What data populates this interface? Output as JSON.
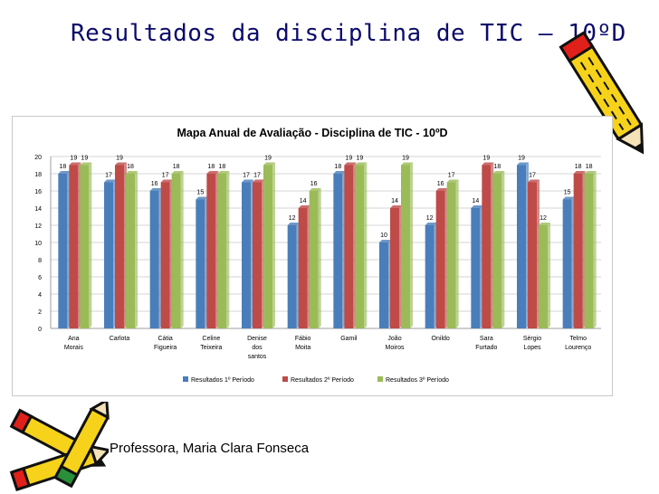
{
  "slide": {
    "title": "Resultados da disciplina de TIC – 10ºD",
    "footer": "Professora, Maria Clara Fonseca"
  },
  "colors": {
    "series": [
      "#4a7ebb",
      "#be4b48",
      "#9bbb59"
    ],
    "title_text": "#0b0b6b",
    "pencil_yellow": "#f6d21a",
    "pencil_red": "#e0201b"
  },
  "icons": [
    "pencil-icon",
    "pencil-icon",
    "pencil-icon"
  ],
  "chart_data": {
    "type": "bar",
    "title": "Mapa Anual de Avaliação - Disciplina de TIC - 10ºD",
    "xlabel": "",
    "ylabel": "",
    "ylim": [
      0,
      20
    ],
    "yticks": [
      0,
      2,
      4,
      6,
      8,
      10,
      12,
      14,
      16,
      18,
      20
    ],
    "grid": true,
    "legend_position": "bottom",
    "categories": [
      [
        "Ana",
        "Morais"
      ],
      [
        "Carlota"
      ],
      [
        "Cátia",
        "Figueira"
      ],
      [
        "Celine",
        "Teixeira"
      ],
      [
        "Denise",
        "dos",
        "santos"
      ],
      [
        "Fábio",
        "Moita"
      ],
      [
        "Gamil"
      ],
      [
        "João",
        "Moiros"
      ],
      [
        "Onildo"
      ],
      [
        "Sara",
        "Furtado"
      ],
      [
        "Sérgio",
        "Lopes"
      ],
      [
        "Telmo",
        "Lourenço"
      ]
    ],
    "series": [
      {
        "name": "Resultados 1º Período",
        "values": [
          18,
          17,
          16,
          15,
          17,
          12,
          18,
          10,
          12,
          14,
          19,
          15
        ]
      },
      {
        "name": "Resultados 2º Período",
        "values": [
          19,
          19,
          17,
          18,
          17,
          14,
          19,
          14,
          16,
          19,
          17,
          18
        ]
      },
      {
        "name": "Resultados 3º Período",
        "values": [
          19,
          18,
          18,
          18,
          19,
          16,
          19,
          19,
          17,
          18,
          12,
          18
        ]
      }
    ]
  }
}
